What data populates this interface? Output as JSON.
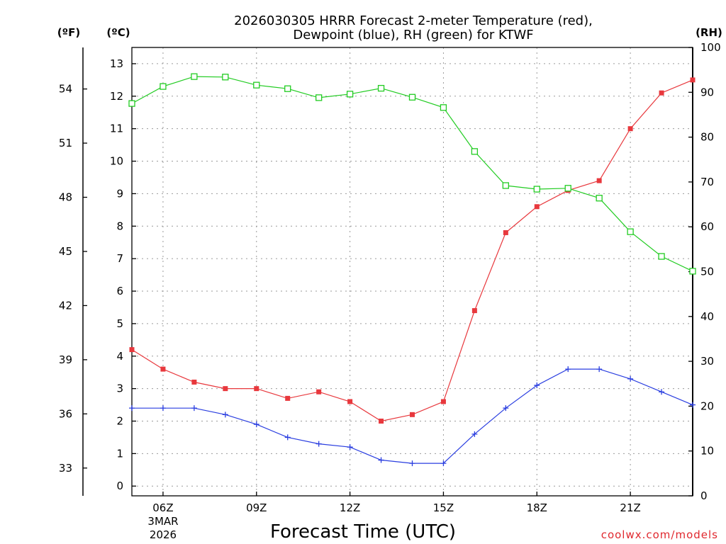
{
  "chart_data": {
    "type": "line",
    "title_line1": "2026030305 HRRR Forecast 2-meter Temperature (red),",
    "title_line2": "Dewpoint (blue), RH (green) for KTWF",
    "xlabel": "Forecast Time (UTC)",
    "credit": "coolwx.com/models",
    "unit_f": "(ºF)",
    "unit_c": "(ºC)",
    "unit_rh": "(RH)",
    "date_line1": "3MAR",
    "date_line2": "2026",
    "x_hours": [
      5,
      6,
      7,
      8,
      9,
      10,
      11,
      12,
      13,
      14,
      15,
      16,
      17,
      18,
      19,
      20,
      21,
      22,
      23
    ],
    "x_range": [
      5,
      23
    ],
    "x_ticks": [
      {
        "hour": 6,
        "label": "06Z"
      },
      {
        "hour": 9,
        "label": "09Z"
      },
      {
        "hour": 12,
        "label": "12Z"
      },
      {
        "hour": 15,
        "label": "15Z"
      },
      {
        "hour": 18,
        "label": "18Z"
      },
      {
        "hour": 21,
        "label": "21Z"
      }
    ],
    "c_range": [
      -0.3,
      13.5
    ],
    "c_ticks": [
      "0",
      "1",
      "2",
      "3",
      "4",
      "5",
      "6",
      "7",
      "8",
      "9",
      "10",
      "11",
      "12",
      "13"
    ],
    "f_ticks": [
      "33",
      "36",
      "39",
      "42",
      "45",
      "48",
      "51",
      "54"
    ],
    "rh_range": [
      0,
      100
    ],
    "rh_ticks": [
      "0",
      "10",
      "20",
      "30",
      "40",
      "50",
      "60",
      "70",
      "80",
      "90",
      "100"
    ],
    "colors": {
      "temperature": "#e8383d",
      "dewpoint": "#2a3ee0",
      "rh": "#22cc22"
    },
    "series": [
      {
        "name": "Temperature",
        "axis": "c",
        "marker": "filled-square",
        "values": [
          4.2,
          3.6,
          3.2,
          3.0,
          3.0,
          2.7,
          2.9,
          2.6,
          2.0,
          2.2,
          2.6,
          5.4,
          7.8,
          8.6,
          9.1,
          9.4,
          11.0,
          12.1,
          12.5
        ]
      },
      {
        "name": "Dewpoint",
        "axis": "c",
        "marker": "plus",
        "values": [
          2.4,
          2.4,
          2.4,
          2.2,
          1.9,
          1.5,
          1.3,
          1.2,
          0.8,
          0.7,
          0.7,
          1.6,
          2.4,
          3.1,
          3.6,
          3.6,
          3.3,
          2.9,
          2.5
        ]
      },
      {
        "name": "RH",
        "axis": "rh",
        "marker": "open-square",
        "values": [
          87.5,
          91.3,
          93.5,
          93.4,
          91.6,
          90.8,
          88.8,
          89.6,
          90.9,
          88.9,
          86.6,
          76.8,
          69.2,
          68.4,
          68.6,
          66.4,
          58.9,
          53.4,
          50.1
        ]
      }
    ]
  }
}
